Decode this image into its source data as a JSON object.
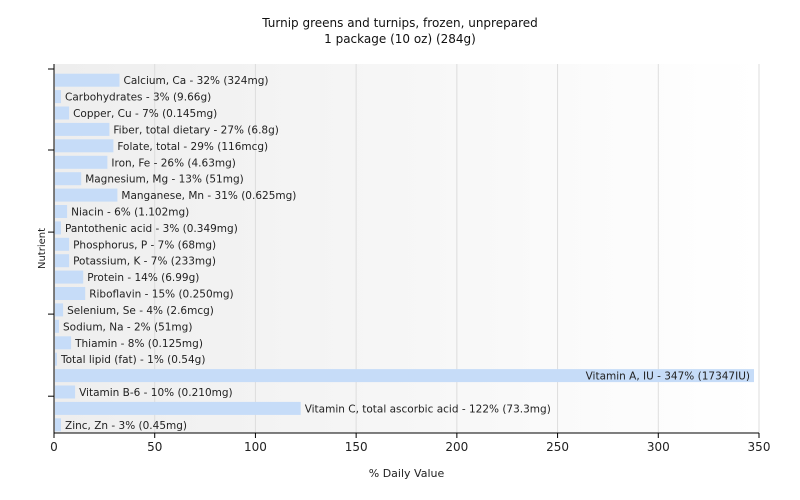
{
  "chart_data": {
    "type": "bar",
    "orientation": "horizontal",
    "title": "Turnip greens and turnips, frozen, unprepared",
    "subtitle": "1 package (10 oz) (284g)",
    "xlabel": "% Daily Value",
    "ylabel": "Nutrient",
    "xlim": [
      0,
      350
    ],
    "xticks": [
      0,
      50,
      100,
      150,
      200,
      250,
      300,
      350
    ],
    "grid": true,
    "bar_color": "#c6dcf8",
    "categories": [
      "Calcium, Ca",
      "Carbohydrates",
      "Copper, Cu",
      "Fiber, total dietary",
      "Folate, total",
      "Iron, Fe",
      "Magnesium, Mg",
      "Manganese, Mn",
      "Niacin",
      "Pantothenic acid",
      "Phosphorus, P",
      "Potassium, K",
      "Protein",
      "Riboflavin",
      "Selenium, Se",
      "Sodium, Na",
      "Thiamin",
      "Total lipid (fat)",
      "Vitamin A, IU",
      "Vitamin B-6",
      "Vitamin C, total ascorbic acid",
      "Zinc, Zn"
    ],
    "values": [
      32,
      3,
      7,
      27,
      29,
      26,
      13,
      31,
      6,
      3,
      7,
      7,
      14,
      15,
      4,
      2,
      8,
      1,
      347,
      10,
      122,
      3
    ],
    "labels": [
      "Calcium, Ca - 32% (324mg)",
      "Carbohydrates - 3% (9.66g)",
      "Copper, Cu - 7% (0.145mg)",
      "Fiber, total dietary - 27% (6.8g)",
      "Folate, total - 29% (116mcg)",
      "Iron, Fe - 26% (4.63mg)",
      "Magnesium, Mg - 13% (51mg)",
      "Manganese, Mn - 31% (0.625mg)",
      "Niacin - 6% (1.102mg)",
      "Pantothenic acid - 3% (0.349mg)",
      "Phosphorus, P - 7% (68mg)",
      "Potassium, K - 7% (233mg)",
      "Protein - 14% (6.99g)",
      "Riboflavin - 15% (0.250mg)",
      "Selenium, Se - 4% (2.6mcg)",
      "Sodium, Na - 2% (51mg)",
      "Thiamin - 8% (0.125mg)",
      "Total lipid (fat) - 1% (0.54g)",
      "Vitamin A, IU - 347% (17347IU)",
      "Vitamin B-6 - 10% (0.210mg)",
      "Vitamin C, total ascorbic acid - 122% (73.3mg)",
      "Zinc, Zn - 3% (0.45mg)"
    ]
  }
}
